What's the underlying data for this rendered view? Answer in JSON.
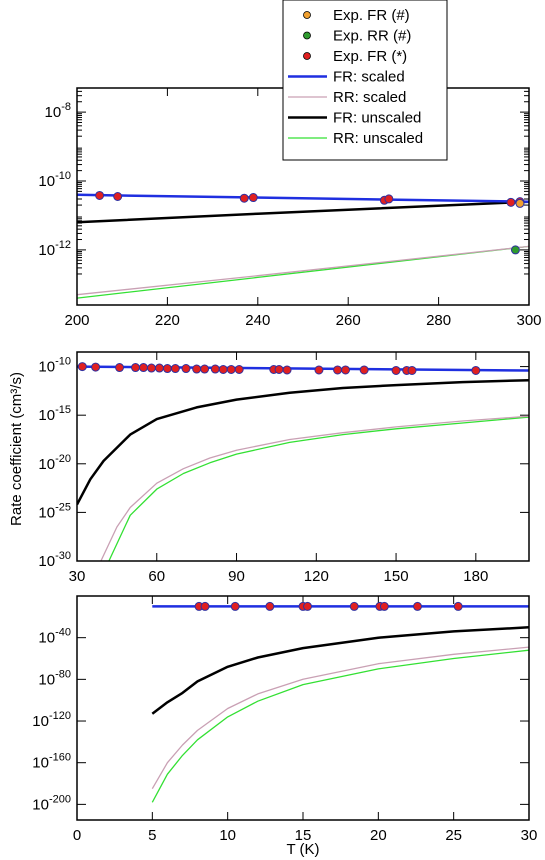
{
  "figure": {
    "ylabel": "Rate coefficient (cm³/s)",
    "xlabel": "T (K)"
  },
  "legend": {
    "placement": "top-center",
    "entries": [
      {
        "label": "Exp. FR (#)",
        "kind": "marker",
        "color": "#f0a030"
      },
      {
        "label": "Exp. RR (#)",
        "kind": "marker",
        "color": "#2e9b2e"
      },
      {
        "label": "Exp. FR (*)",
        "kind": "marker",
        "color": "#e02020"
      },
      {
        "label": "FR: scaled",
        "kind": "line",
        "color": "#1f2fe0",
        "width": 2.5
      },
      {
        "label": "RR: scaled",
        "kind": "line",
        "color": "#c9a0b4",
        "width": 1.3
      },
      {
        "label": "FR: unscaled",
        "kind": "line",
        "color": "#000000",
        "width": 2.5
      },
      {
        "label": "RR: unscaled",
        "kind": "line",
        "color": "#33e033",
        "width": 1.3
      }
    ]
  },
  "chart_data": [
    {
      "type": "line",
      "panel": "top",
      "xlim": [
        200,
        300
      ],
      "ylim_log10": [
        -13.6,
        -7.3
      ],
      "yscale": "log",
      "xticks": [
        "200",
        "220",
        "240",
        "260",
        "280",
        "300"
      ],
      "xtick_values": [
        200,
        220,
        240,
        260,
        280,
        300
      ],
      "yticks": [
        {
          "base": "10",
          "exp": "-8",
          "value": -8
        },
        {
          "base": "10",
          "exp": "-10",
          "value": -10
        },
        {
          "base": "10",
          "exp": "-12",
          "value": -12
        }
      ],
      "series": [
        {
          "name": "FR: scaled",
          "x": [
            200,
            300
          ],
          "y_log10": [
            -10.4,
            -10.6
          ]
        },
        {
          "name": "RR: scaled",
          "x": [
            200,
            240,
            300
          ],
          "y_log10": [
            -13.3,
            -12.75,
            -11.9
          ]
        },
        {
          "name": "FR: unscaled",
          "x": [
            200,
            240,
            300
          ],
          "y_log10": [
            -11.2,
            -10.95,
            -10.6
          ]
        },
        {
          "name": "RR: unscaled",
          "x": [
            200,
            240,
            300
          ],
          "y_log10": [
            -13.4,
            -12.8,
            -11.9
          ]
        }
      ],
      "points": [
        {
          "name": "Exp. FR (*)",
          "x": [
            205,
            209,
            237,
            239,
            268,
            269,
            296,
            298
          ],
          "y_log10": [
            -10.42,
            -10.45,
            -10.5,
            -10.48,
            -10.56,
            -10.52,
            -10.62,
            -10.6
          ]
        },
        {
          "name": "Exp. FR (#)",
          "x": [
            298
          ],
          "y_log10": [
            -10.65
          ]
        },
        {
          "name": "Exp. RR (#)",
          "x": [
            297
          ],
          "y_log10": [
            -12.0
          ]
        }
      ]
    },
    {
      "type": "line",
      "panel": "middle",
      "xlim": [
        30,
        200
      ],
      "ylim_log10": [
        -30,
        -8.5
      ],
      "yscale": "log",
      "xticks": [
        "30",
        "60",
        "90",
        "120",
        "150",
        "180"
      ],
      "xtick_values": [
        30,
        60,
        90,
        120,
        150,
        180
      ],
      "yticks": [
        {
          "base": "10",
          "exp": "-10",
          "value": -10
        },
        {
          "base": "10",
          "exp": "-15",
          "value": -15
        },
        {
          "base": "10",
          "exp": "-20",
          "value": -20
        },
        {
          "base": "10",
          "exp": "-25",
          "value": -25
        },
        {
          "base": "10",
          "exp": "-30",
          "value": -30
        }
      ],
      "series": [
        {
          "name": "FR: scaled",
          "x": [
            30,
            200
          ],
          "y_log10": [
            -10.0,
            -10.4
          ]
        },
        {
          "name": "FR: unscaled",
          "x": [
            30,
            35,
            40,
            50,
            60,
            75,
            90,
            110,
            130,
            150,
            175,
            200
          ],
          "y_log10": [
            -24.2,
            -21.6,
            -19.7,
            -17.0,
            -15.4,
            -14.2,
            -13.4,
            -12.7,
            -12.2,
            -11.9,
            -11.6,
            -11.4
          ]
        },
        {
          "name": "RR: scaled",
          "x": [
            39,
            45,
            50,
            60,
            70,
            80,
            90,
            110,
            130,
            150,
            175,
            200
          ],
          "y_log10": [
            -30,
            -26.5,
            -24.5,
            -22.0,
            -20.5,
            -19.4,
            -18.6,
            -17.5,
            -16.8,
            -16.2,
            -15.6,
            -15.1
          ]
        },
        {
          "name": "RR: unscaled",
          "x": [
            42,
            50,
            60,
            70,
            80,
            90,
            110,
            130,
            150,
            175,
            200
          ],
          "y_log10": [
            -30,
            -25.3,
            -22.6,
            -21.0,
            -19.9,
            -19.0,
            -17.8,
            -17.0,
            -16.4,
            -15.8,
            -15.2
          ]
        }
      ],
      "points": [
        {
          "name": "Exp. FR (*)",
          "x": [
            32,
            37,
            46,
            52,
            55,
            58,
            61,
            64,
            67,
            71,
            75,
            78,
            82,
            85,
            88,
            91,
            104,
            106,
            109,
            121,
            128,
            131,
            138,
            150,
            154,
            156,
            180
          ],
          "y_log10": [
            -10.0,
            -10.05,
            -10.1,
            -10.1,
            -10.1,
            -10.15,
            -10.15,
            -10.2,
            -10.2,
            -10.2,
            -10.25,
            -10.25,
            -10.25,
            -10.3,
            -10.3,
            -10.3,
            -10.3,
            -10.3,
            -10.35,
            -10.35,
            -10.35,
            -10.35,
            -10.35,
            -10.4,
            -10.4,
            -10.4,
            -10.4
          ]
        }
      ]
    },
    {
      "type": "line",
      "panel": "bottom",
      "xlim": [
        0,
        30
      ],
      "ylim_log10": [
        -215,
        0
      ],
      "yscale": "log",
      "xticks": [
        "0",
        "5",
        "10",
        "15",
        "20",
        "25",
        "30"
      ],
      "xtick_values": [
        0,
        5,
        10,
        15,
        20,
        25,
        30
      ],
      "yticks": [
        {
          "base": "10",
          "exp": "-40",
          "value": -40
        },
        {
          "base": "10",
          "exp": "-80",
          "value": -80
        },
        {
          "base": "10",
          "exp": "-120",
          "value": -120
        },
        {
          "base": "10",
          "exp": "-160",
          "value": -160
        },
        {
          "base": "10",
          "exp": "-200",
          "value": -200
        }
      ],
      "series": [
        {
          "name": "FR: scaled",
          "x": [
            5,
            30
          ],
          "y_log10": [
            -10.0,
            -10.0
          ]
        },
        {
          "name": "FR: unscaled",
          "x": [
            5,
            6,
            7,
            8,
            10,
            12,
            15,
            20,
            25,
            30
          ],
          "y_log10": [
            -113,
            -102,
            -93,
            -82,
            -68,
            -59,
            -50,
            -40,
            -34,
            -30
          ]
        },
        {
          "name": "RR: scaled",
          "x": [
            5,
            6,
            7,
            8,
            10,
            12,
            15,
            20,
            25,
            30
          ],
          "y_log10": [
            -185,
            -160,
            -143,
            -129,
            -108,
            -94,
            -80,
            -65,
            -56,
            -49
          ]
        },
        {
          "name": "RR: unscaled",
          "x": [
            5,
            6,
            7,
            8,
            10,
            12,
            15,
            20,
            25,
            30
          ],
          "y_log10": [
            -198,
            -171,
            -153,
            -138,
            -116,
            -101,
            -85,
            -70,
            -60,
            -52
          ]
        }
      ],
      "points": [
        {
          "name": "Exp. FR (*)",
          "x": [
            8.1,
            8.5,
            10.5,
            12.8,
            15.0,
            15.3,
            18.4,
            20.1,
            20.4,
            22.6,
            25.3
          ],
          "y_log10": [
            -10,
            -10,
            -10,
            -10,
            -10,
            -10,
            -10,
            -10,
            -10,
            -10,
            -10
          ]
        }
      ]
    }
  ]
}
